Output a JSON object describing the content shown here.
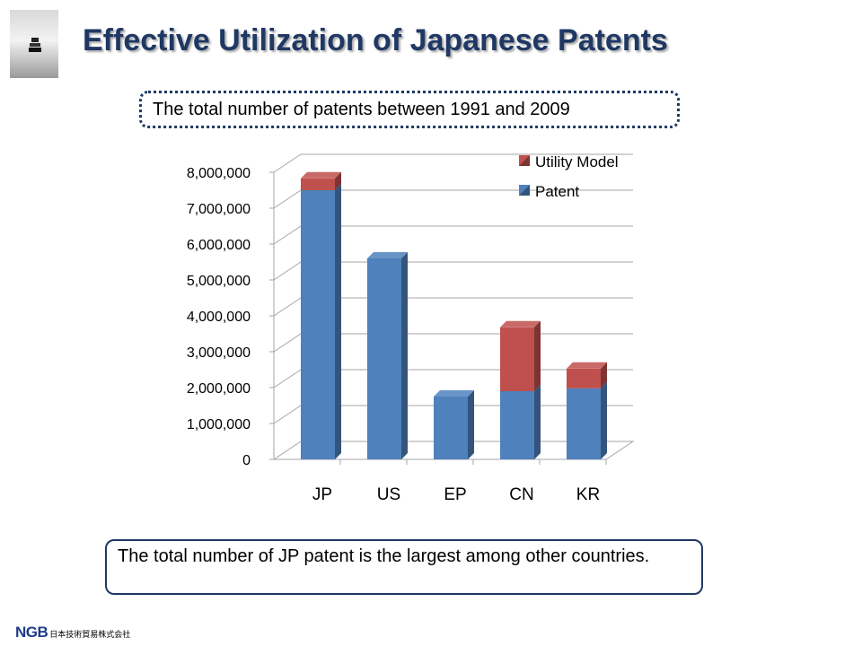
{
  "slide": {
    "title": "Effective Utilization of Japanese Patents",
    "subtitle": "The total number of patents between 1991 and 2009",
    "note": "The total  number of JP patent is the largest among other countries.",
    "footer_logo": "NGB",
    "footer_company": "日本技術貿易株式会社"
  },
  "chart_data": {
    "type": "bar",
    "stacked": true,
    "categories": [
      "JP",
      "US",
      "EP",
      "CN",
      "KR"
    ],
    "series": [
      {
        "name": "Patent",
        "color": "#4f81bd",
        "values": [
          7500000,
          5600000,
          1750000,
          1900000,
          1980000
        ]
      },
      {
        "name": "Utility Model",
        "color": "#c0504d",
        "values": [
          330000,
          0,
          0,
          1780000,
          550000
        ]
      }
    ],
    "ylim": [
      0,
      8000000
    ],
    "yticks": [
      0,
      1000000,
      2000000,
      3000000,
      4000000,
      5000000,
      6000000,
      7000000,
      8000000
    ],
    "ytick_labels": [
      "0",
      "1,000,000",
      "2,000,000",
      "3,000,000",
      "4,000,000",
      "5,000,000",
      "6,000,000",
      "7,000,000",
      "8,000,000"
    ],
    "grid": true,
    "legend": "top-right",
    "xlabel": "",
    "ylabel": ""
  }
}
